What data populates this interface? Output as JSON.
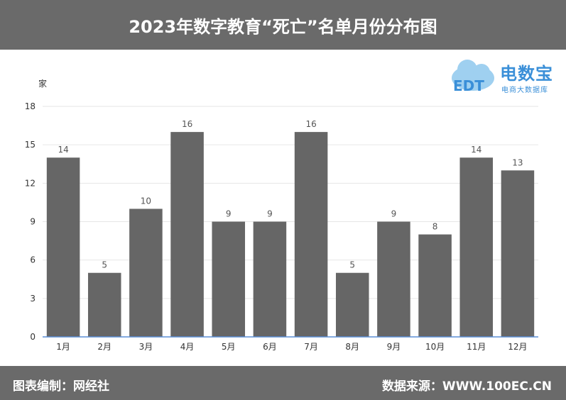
{
  "header": {
    "title": "2023年数字教育“死亡”名单月份分布图"
  },
  "footer": {
    "left": "图表编制：网经社",
    "right": "数据来源：WWW.100EC.CN"
  },
  "logo": {
    "brand": "电数宝",
    "sub": "电商大数据库",
    "mark": "EDT",
    "color": "#3a8fd8"
  },
  "chart_data": {
    "type": "bar",
    "categories": [
      "1月",
      "2月",
      "3月",
      "4月",
      "5月",
      "6月",
      "7月",
      "8月",
      "9月",
      "10月",
      "11月",
      "12月"
    ],
    "values": [
      14,
      5,
      10,
      16,
      9,
      9,
      16,
      5,
      9,
      8,
      14,
      13
    ],
    "ylabel": "家",
    "ylim": [
      0,
      18
    ],
    "yticks": [
      0,
      3,
      6,
      9,
      12,
      15,
      18
    ],
    "grid": true,
    "data_labels": true,
    "bar_color": "#666666",
    "axis_color": "#5b8fd6"
  }
}
